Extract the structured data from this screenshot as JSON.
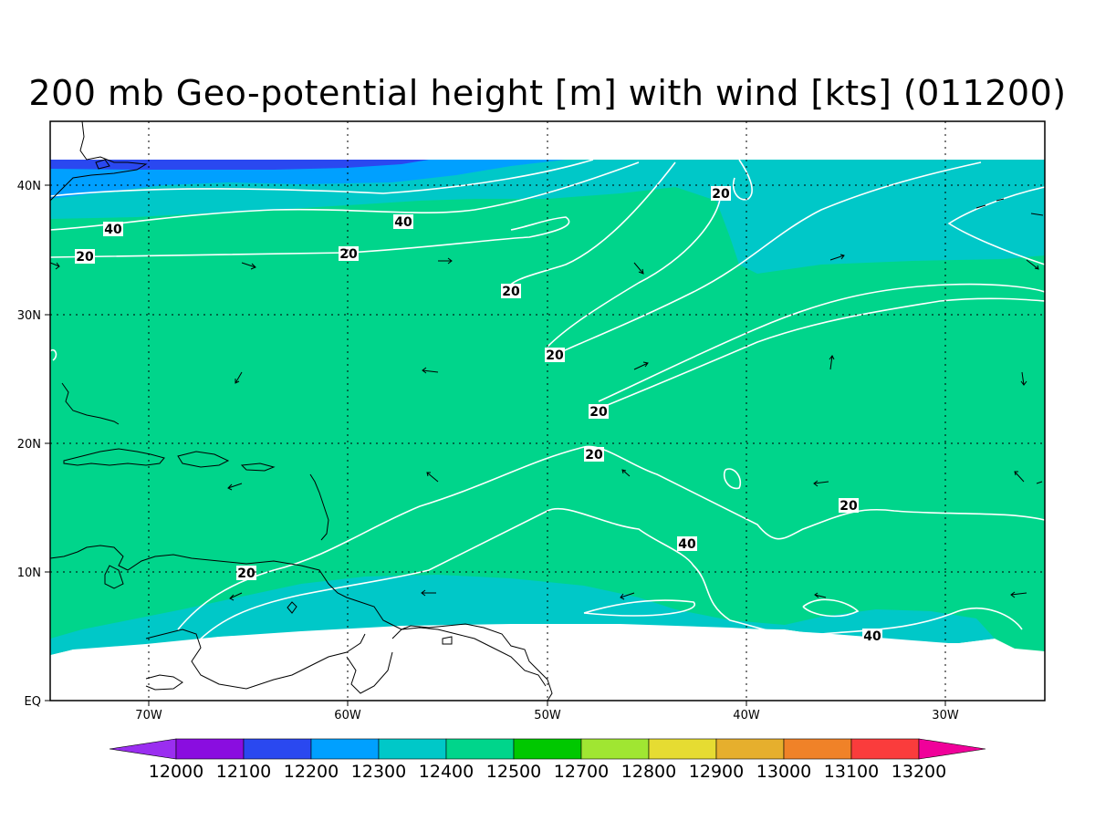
{
  "title": "200 mb Geo-potential height [m] with wind [kts] (011200)",
  "axes": {
    "x_ticks": [
      "70W",
      "60W",
      "50W",
      "40W",
      "30W"
    ],
    "y_ticks": [
      "EQ",
      "10N",
      "20N",
      "30N",
      "40N"
    ]
  },
  "contour_labels": {
    "items": [
      "40",
      "40",
      "20",
      "20",
      "20",
      "20",
      "20",
      "20",
      "20",
      "20",
      "40",
      "20",
      "40"
    ]
  },
  "colorbar": {
    "labels": [
      "12000",
      "12100",
      "12200",
      "12300",
      "12400",
      "12500",
      "12700",
      "12800",
      "12900",
      "13000",
      "13100",
      "13200"
    ],
    "colors": [
      "#9a2ef0",
      "#8a0de0",
      "#2a48f0",
      "#00a0ff",
      "#00c8c8",
      "#00d58b",
      "#00c800",
      "#a0e632",
      "#e6dc32",
      "#e6af2d",
      "#f08228",
      "#fa3c3c",
      "#f0009a"
    ]
  },
  "map_colors": {
    "band_12200": "#2a48f0",
    "band_12300": "#00a0ff",
    "band_12400": "#00c8c8",
    "band_12500": "#00d58b"
  }
}
